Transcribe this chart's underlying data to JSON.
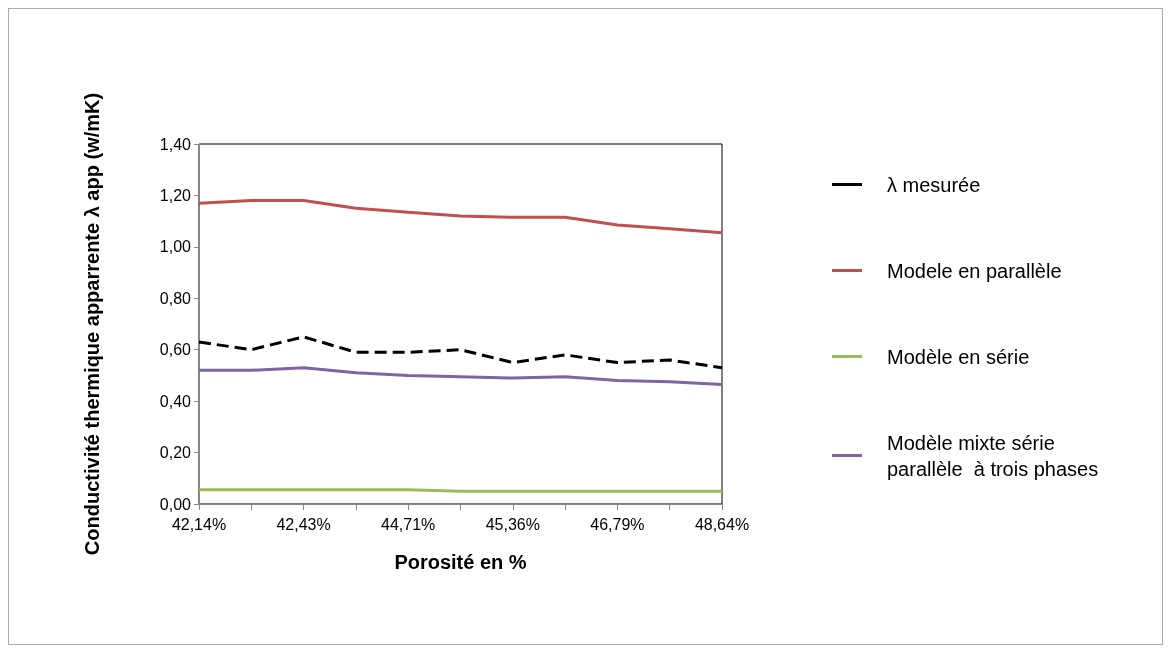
{
  "chart_data": {
    "type": "line",
    "xlabel": "Porosité en %",
    "ylabel": "Conductivité thermique apparrente λ app (w/mK)",
    "categories": [
      "42,14%",
      null,
      "42,43%",
      null,
      "44,71%",
      null,
      "45,36%",
      null,
      "46,79%",
      null,
      "48,64%"
    ],
    "series": [
      {
        "name": "λ mesurée",
        "color": "#000000",
        "line_style": "dashed",
        "values": [
          0.63,
          0.6,
          0.65,
          0.59,
          0.59,
          0.6,
          0.55,
          0.58,
          0.55,
          0.56,
          0.53
        ]
      },
      {
        "name": "Modele en parallèle",
        "color": "#c0504d",
        "line_style": "solid",
        "values": [
          1.17,
          1.18,
          1.18,
          1.15,
          1.135,
          1.12,
          1.115,
          1.115,
          1.085,
          1.07,
          1.055
        ]
      },
      {
        "name": "Modèle en série",
        "color": "#9bbb59",
        "line_style": "solid",
        "values": [
          0.055,
          0.055,
          0.055,
          0.055,
          0.055,
          0.05,
          0.05,
          0.05,
          0.05,
          0.05,
          0.05
        ]
      },
      {
        "name": "Modèle mixte série parallèle  à trois phases",
        "color": "#8064a2",
        "line_style": "solid",
        "values": [
          0.52,
          0.52,
          0.53,
          0.51,
          0.5,
          0.495,
          0.49,
          0.495,
          0.48,
          0.475,
          0.465
        ]
      }
    ],
    "ylim": [
      0,
      1.4
    ],
    "yticks": [
      {
        "value": 0,
        "label": "0,00"
      },
      {
        "value": 0.2,
        "label": "0,20"
      },
      {
        "value": 0.4,
        "label": "0,40"
      },
      {
        "value": 0.6,
        "label": "0,60"
      },
      {
        "value": 0.8,
        "label": "0,80"
      },
      {
        "value": 1,
        "label": "1,00"
      },
      {
        "value": 1.2,
        "label": "1,20"
      },
      {
        "value": 1.4,
        "label": "1,40"
      }
    ],
    "grid": false,
    "legend": "right",
    "marker": "none"
  }
}
